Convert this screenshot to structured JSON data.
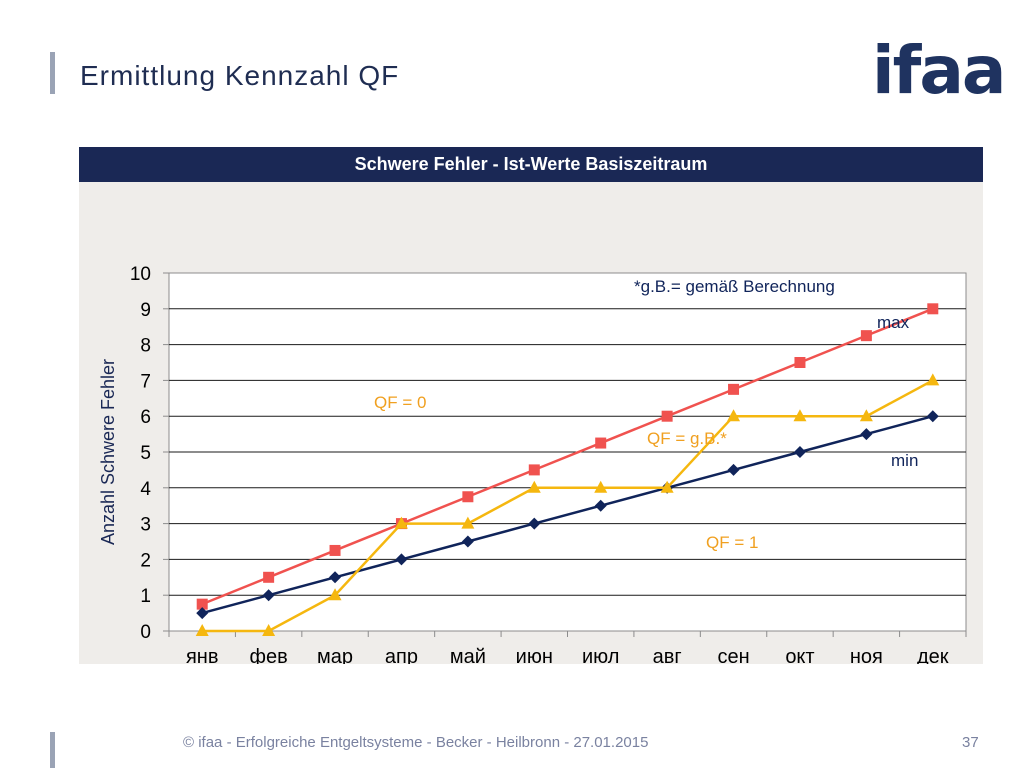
{
  "slide": {
    "title": "Ermittlung Kennzahl QF",
    "logo": "ifaa",
    "footer": "© ifaa - Erfolgreiche Entgeltsysteme - Becker - Heilbronn - 27.01.2015",
    "page_number": "37"
  },
  "chart_data": {
    "type": "line",
    "title": "Schwere Fehler - Ist-Werte Basiszeitraum",
    "xlabel": "",
    "ylabel": "Anzahl Schwere Fehler",
    "ylim": [
      0,
      10
    ],
    "yticks": [
      "0",
      "1",
      "2",
      "3",
      "4",
      "5",
      "6",
      "7",
      "8",
      "9",
      "10"
    ],
    "categories": [
      "янв",
      "фев",
      "мар",
      "апр",
      "май",
      "июн",
      "июл",
      "авг",
      "сен",
      "окт",
      "ноя",
      "дек"
    ],
    "grid": true,
    "series": [
      {
        "name": "max",
        "color": "#f0524f",
        "marker": "square",
        "values": [
          0.75,
          1.5,
          2.25,
          3.0,
          3.75,
          4.5,
          5.25,
          6.0,
          6.75,
          7.5,
          8.25,
          9.0
        ]
      },
      {
        "name": "min",
        "color": "#10245a",
        "marker": "diamond",
        "values": [
          0.5,
          1.0,
          1.5,
          2.0,
          2.5,
          3.0,
          3.5,
          4.0,
          4.5,
          5.0,
          5.5,
          6.0
        ]
      },
      {
        "color": "#f5b70f",
        "marker": "triangle",
        "values": [
          0,
          0,
          1,
          3,
          3,
          4,
          4,
          4,
          6,
          6,
          6,
          7
        ]
      }
    ],
    "annotations": {
      "note": "*g.B.= gemäß Berechnung",
      "max_label": "max",
      "min_label": "min",
      "qf0": "QF = 0",
      "qfgb": "QF = g.B.*",
      "qf1": "QF = 1"
    },
    "colors": {
      "annotation_orange": "#f0a020",
      "text_dark": "#10245a"
    }
  }
}
